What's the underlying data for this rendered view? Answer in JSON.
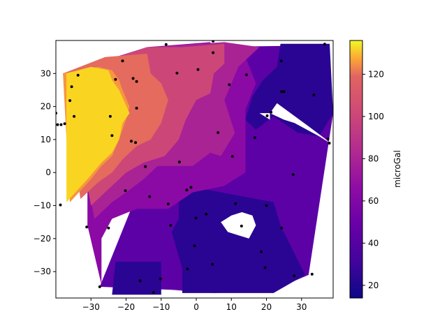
{
  "chart_data": {
    "type": "contour",
    "title": "",
    "xlabel": "",
    "ylabel": "",
    "xlim": [
      -40,
      39
    ],
    "ylim": [
      -38,
      40
    ],
    "xticks": [
      -30,
      -20,
      -10,
      0,
      10,
      20,
      30
    ],
    "yticks": [
      -30,
      -20,
      -10,
      0,
      10,
      20,
      30
    ],
    "colorbar": {
      "label": "microGal",
      "colormap": "plasma",
      "range": [
        14,
        136
      ],
      "ticks": [
        20,
        40,
        60,
        80,
        100,
        120
      ]
    },
    "level_colors": {
      "l20": "#2a0593",
      "l40": "#5c01a6",
      "l60": "#8b0aa5",
      "l70": "#a92395",
      "l85": "#cc4778",
      "l100": "#e46b5d",
      "l115": "#f89540",
      "l130": "#f9d522"
    },
    "contour_regions": [
      {
        "level": "l40",
        "points": [
          [
            -27.5,
            -34.6
          ],
          [
            -7,
            -35.5
          ],
          [
            5,
            -36.5
          ],
          [
            22,
            -35.5
          ],
          [
            32,
            -31
          ],
          [
            39,
            18
          ],
          [
            36,
            38.5
          ],
          [
            0,
            38
          ]
        ]
      },
      {
        "level": "l20",
        "points": [
          [
            -24,
            -37
          ],
          [
            -10,
            -37
          ],
          [
            -10,
            -27
          ],
          [
            -23,
            -27
          ]
        ]
      },
      {
        "level": "l20",
        "points": [
          [
            -4,
            -36.5
          ],
          [
            22,
            -36.5
          ],
          [
            31,
            -31
          ],
          [
            24,
            -16
          ],
          [
            22,
            -9
          ],
          [
            12,
            -7
          ],
          [
            2,
            -5
          ],
          [
            -5,
            -7
          ],
          [
            -5,
            -14
          ],
          [
            -7,
            -18
          ],
          [
            -4,
            -29
          ]
        ]
      },
      {
        "level": "l20",
        "points": [
          [
            38,
            39
          ],
          [
            39,
            18
          ],
          [
            35,
            11
          ],
          [
            29,
            12
          ],
          [
            22,
            17
          ],
          [
            17,
            13
          ],
          [
            14,
            16
          ],
          [
            16,
            23
          ],
          [
            19,
            28
          ],
          [
            23,
            32
          ],
          [
            24,
            39
          ]
        ]
      },
      {
        "level": "l60",
        "points": [
          [
            -27,
            -34
          ],
          [
            -31,
            -16
          ],
          [
            -31,
            -3
          ],
          [
            -38,
            30
          ],
          [
            -14,
            38
          ],
          [
            4,
            39.5
          ],
          [
            6,
            33
          ],
          [
            14,
            35
          ],
          [
            17,
            27
          ],
          [
            14,
            19
          ],
          [
            14,
            0
          ],
          [
            8,
            -4
          ],
          [
            -1,
            -6
          ],
          [
            -8,
            -11
          ],
          [
            -17,
            -11
          ],
          [
            -24,
            -14
          ],
          [
            -27,
            -20
          ]
        ]
      },
      {
        "level": "l70",
        "points": [
          [
            -29,
            -14
          ],
          [
            -37,
            30
          ],
          [
            -14,
            38
          ],
          [
            8,
            39.5
          ],
          [
            18,
            38
          ],
          [
            12,
            32
          ],
          [
            10,
            27
          ],
          [
            8,
            22
          ],
          [
            11,
            12
          ],
          [
            7,
            5
          ],
          [
            4,
            6
          ],
          [
            -1,
            2
          ],
          [
            -6,
            2
          ],
          [
            -11,
            2
          ],
          [
            -15,
            -2
          ],
          [
            -20,
            -6
          ],
          [
            -24,
            -9
          ]
        ]
      },
      {
        "level": "l85",
        "points": [
          [
            -30,
            -10
          ],
          [
            -37,
            30
          ],
          [
            -14,
            38
          ],
          [
            -4,
            38
          ],
          [
            8,
            39
          ],
          [
            8,
            33
          ],
          [
            5,
            30
          ],
          [
            4,
            24
          ],
          [
            0,
            22
          ],
          [
            -3,
            16
          ],
          [
            -5,
            10
          ],
          [
            -9,
            5
          ],
          [
            -15,
            3
          ],
          [
            -20,
            0
          ],
          [
            -22,
            -2
          ],
          [
            -25,
            -5
          ]
        ]
      },
      {
        "level": "l100",
        "points": [
          [
            -33,
            -8
          ],
          [
            -38,
            30
          ],
          [
            -26,
            35
          ],
          [
            -14,
            36
          ],
          [
            -13,
            30
          ],
          [
            -10,
            27
          ],
          [
            -8,
            22
          ],
          [
            -10,
            15
          ],
          [
            -13,
            10
          ],
          [
            -17,
            8
          ],
          [
            -21,
            4
          ],
          [
            -24,
            0
          ],
          [
            -28,
            -3
          ]
        ]
      },
      {
        "level": "l115",
        "points": [
          [
            -36,
            -9
          ],
          [
            -38,
            30
          ],
          [
            -28,
            32
          ],
          [
            -24,
            31
          ],
          [
            -22,
            28
          ],
          [
            -21,
            25
          ],
          [
            -19,
            20
          ],
          [
            -20,
            16
          ],
          [
            -21,
            13
          ],
          [
            -22,
            10
          ],
          [
            -24,
            5
          ],
          [
            -27,
            2
          ],
          [
            -30,
            -2
          ]
        ]
      },
      {
        "level": "l130",
        "points": [
          [
            -37,
            -9
          ],
          [
            -37,
            30
          ],
          [
            -30,
            32
          ],
          [
            -25,
            31
          ],
          [
            -24,
            28
          ],
          [
            -22,
            25
          ],
          [
            -19,
            18
          ],
          [
            -21,
            15
          ],
          [
            -22,
            10
          ],
          [
            -24,
            6
          ],
          [
            -27,
            3
          ],
          [
            -31,
            -2
          ]
        ]
      }
    ],
    "holes": [
      [
        [
          21,
          18
        ],
        [
          23,
          21
        ],
        [
          32,
          14
        ],
        [
          37,
          10
        ],
        [
          38,
          9
        ],
        [
          35,
          11
        ],
        [
          28,
          15
        ],
        [
          25,
          16
        ],
        [
          21,
          18
        ],
        [
          18,
          18
        ],
        [
          21,
          16
        ]
      ],
      [
        [
          7,
          -15
        ],
        [
          10,
          -13
        ],
        [
          13,
          -12
        ],
        [
          16,
          -13
        ],
        [
          17,
          -16
        ],
        [
          15,
          -20
        ],
        [
          12,
          -19
        ],
        [
          9,
          -18
        ]
      ]
    ],
    "stations": [
      [
        -40,
        18
      ],
      [
        -39.5,
        14.5
      ],
      [
        -38.5,
        14.5
      ],
      [
        -37.5,
        14.8
      ],
      [
        -36,
        21.8
      ],
      [
        -35.5,
        26
      ],
      [
        -34.8,
        17
      ],
      [
        -33.7,
        29.5
      ],
      [
        -21,
        33.8
      ],
      [
        -18,
        28.5
      ],
      [
        -17,
        27.6
      ],
      [
        -23,
        28.2
      ],
      [
        -17,
        19.5
      ],
      [
        -24.5,
        17
      ],
      [
        -24,
        11.2
      ],
      [
        -18.5,
        9.5
      ],
      [
        -17.3,
        9.1
      ],
      [
        -14.5,
        1.8
      ],
      [
        -20.2,
        -5.5
      ],
      [
        -13.3,
        -7.3
      ],
      [
        -8,
        -9.5
      ],
      [
        -7.3,
        -16
      ],
      [
        -25,
        -16.8
      ],
      [
        -31.2,
        -16.5
      ],
      [
        -38.7,
        -9.8
      ],
      [
        -27.5,
        -34.6
      ],
      [
        -16,
        -32.8
      ],
      [
        -12.2,
        -36.3
      ],
      [
        -10.2,
        -32.2
      ],
      [
        -2.5,
        -29.2
      ],
      [
        -0.5,
        -22.2
      ],
      [
        4.6,
        -27.8
      ],
      [
        -0.1,
        -13.8
      ],
      [
        2.8,
        -12.6
      ],
      [
        -2.7,
        -5.3
      ],
      [
        -1.5,
        -4.5
      ],
      [
        -4.8,
        3.2
      ],
      [
        6.2,
        12.1
      ],
      [
        10.3,
        4.9
      ],
      [
        11.2,
        -9.4
      ],
      [
        12.9,
        -16.2
      ],
      [
        18.5,
        -24
      ],
      [
        19.6,
        -28.8
      ],
      [
        20,
        -10
      ],
      [
        24.3,
        -16.8
      ],
      [
        27.6,
        -0.6
      ],
      [
        27.9,
        -31.3
      ],
      [
        33,
        -30.8
      ],
      [
        33.5,
        23.5
      ],
      [
        37.5,
        10.2
      ],
      [
        37.9,
        8.9
      ],
      [
        36.6,
        38.9
      ],
      [
        25,
        24.5
      ],
      [
        24.2,
        33.8
      ],
      [
        24.3,
        24.5
      ],
      [
        20.2,
        17.2
      ],
      [
        21.3,
        18.3
      ],
      [
        14.3,
        29.6
      ],
      [
        16.7,
        10.6
      ],
      [
        9.4,
        26.6
      ],
      [
        0.5,
        31.2
      ],
      [
        -5.5,
        30.1
      ],
      [
        -8.6,
        38.8
      ],
      [
        4.8,
        36.3
      ],
      [
        4.8,
        39.8
      ]
    ]
  }
}
